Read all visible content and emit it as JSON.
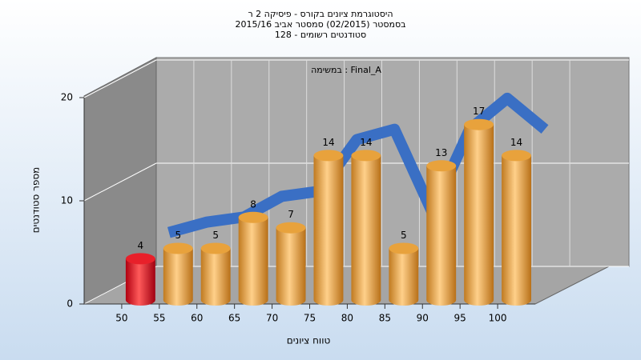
{
  "chart_data": {
    "type": "histogram",
    "title": [
      "היסטוגרמת ציונים בקורס - פיסיקה 2 ר",
      "בסמסטר  (02/2015)  סמסטר אביב 2015/16",
      "סטודנטים רשומים - 128"
    ],
    "annotation": "במשימה : Final_A",
    "x_label": "טווח ציונים",
    "y_label": "מספר סטודנטים",
    "bins": [
      50,
      55,
      60,
      65,
      70,
      75,
      80,
      85,
      90,
      95,
      100,
      105
    ],
    "values": [
      4,
      5,
      5,
      8,
      7,
      14,
      14,
      5,
      13,
      17,
      14
    ],
    "colors": [
      "#e8202a",
      "#e8a23c",
      "#e8a23c",
      "#e8a23c",
      "#e8a23c",
      "#e8a23c",
      "#e8a23c",
      "#e8a23c",
      "#e8a23c",
      "#e8a23c",
      "#e8a23c"
    ],
    "curve": {
      "color": "#3a6fc4",
      "x": [
        55,
        60,
        65,
        70,
        75,
        80,
        85,
        90,
        95,
        100,
        105
      ],
      "values": [
        6,
        7,
        7.5,
        9.5,
        10,
        15,
        16,
        8,
        16,
        19,
        16
      ]
    },
    "xlim": [
      45,
      105
    ],
    "xticks": [
      50,
      55,
      60,
      65,
      70,
      75,
      80,
      85,
      90,
      95,
      100
    ],
    "ylim": [
      0,
      20
    ],
    "yticks": [
      0,
      10,
      20
    ],
    "grid": true
  }
}
